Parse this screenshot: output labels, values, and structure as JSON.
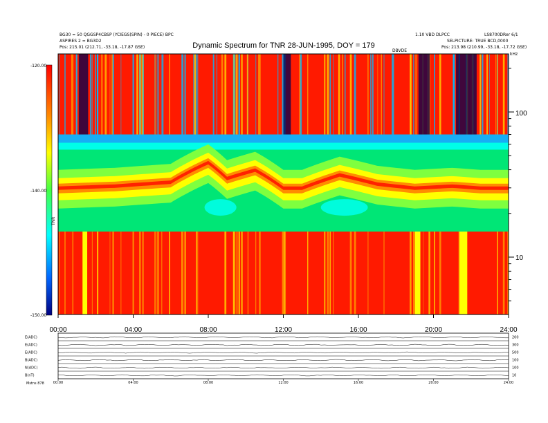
{
  "header": {
    "title": "Dynamic Spectrum for TNR 28-JUN-1995, DOY = 179",
    "left_line1": "BG30 = 50 QGGSP4CBSP (YCIEGS(SPIN) - 0 PIECE) BPC",
    "left_line2": "ASPIRES 2 = BG3D2",
    "left_pos": "Pos:   215.01 (212.71, -33.18, -17.87 GSE)",
    "right_line1": "1.10 VBD DLPCC",
    "right_line2": "LS8700DRer 6/1",
    "right_line3": "SELPICTURE: TRUE BCD,0000",
    "right_pos": "Pos:   213.98 (210.99, -33.18, -17.72 GSE)",
    "center_small": "DBVDE",
    "units_top": "kHz"
  },
  "colorbar": {
    "ticks": [
      "-120.00",
      "-140.00",
      "-150.00"
    ],
    "label": "TNR"
  },
  "chart_data": {
    "type": "heatmap",
    "title": "Dynamic Spectrum for TNR 28-JUN-1995, DOY = 179",
    "x_ticks": [
      "00:00",
      "04:00",
      "08:00",
      "12:00",
      "16:00",
      "20:00",
      "24:00"
    ],
    "x_range_hours": [
      0,
      24
    ],
    "y_scale": "log",
    "y_ticks_right": [
      "100",
      "10"
    ],
    "y_units": "kHz",
    "colorbar_range_db": [
      -150,
      -120
    ],
    "colors": {
      "saturated": "#ff1a00",
      "background": "#00e676",
      "band_low": "#00ffee",
      "band_edge": "#ffff00",
      "band_peak": "#ff2200",
      "gap_light": "#00bbff",
      "gap_dark": "#000050"
    },
    "band": {
      "description_hours": [
        0,
        3,
        6,
        8,
        9,
        10.5,
        12,
        13,
        15,
        17,
        19,
        21,
        22.5,
        24
      ],
      "peak_freq_khz": [
        30,
        31,
        33,
        45,
        35,
        40,
        30,
        30,
        37,
        32,
        30,
        31,
        30,
        30
      ]
    },
    "panel_band_khz": [
      15,
      70
    ]
  },
  "bottom": {
    "row_labels": [
      "E(ADC)",
      "E(ADC)",
      "E(ADC)",
      "B(ADC)",
      "N(ADC)",
      "B(nT)"
    ],
    "right_scales": [
      "200",
      "300",
      "500",
      "100",
      "100",
      "10"
    ],
    "x_ticks": [
      "00:00",
      "04:00",
      "08:00",
      "12:00",
      "16:00",
      "20:00",
      "24:00"
    ],
    "footer_left": "Mstns     878"
  }
}
